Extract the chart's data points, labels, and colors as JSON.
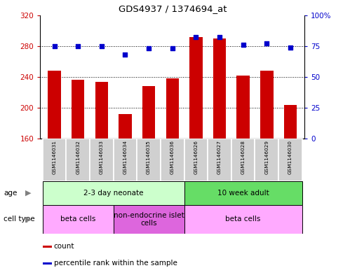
{
  "title": "GDS4937 / 1374694_at",
  "samples": [
    "GSM1146031",
    "GSM1146032",
    "GSM1146033",
    "GSM1146034",
    "GSM1146035",
    "GSM1146036",
    "GSM1146026",
    "GSM1146027",
    "GSM1146028",
    "GSM1146029",
    "GSM1146030"
  ],
  "counts": [
    248,
    236,
    234,
    192,
    228,
    238,
    292,
    290,
    242,
    248,
    204
  ],
  "percentiles": [
    75,
    75,
    75,
    68,
    73,
    73,
    82,
    82,
    76,
    77,
    74
  ],
  "ymin": 160,
  "ymax": 320,
  "yticks": [
    160,
    200,
    240,
    280,
    320
  ],
  "y2min": 0,
  "y2max": 100,
  "y2ticks": [
    0,
    25,
    50,
    75,
    100
  ],
  "bar_color": "#cc0000",
  "dot_color": "#0000cc",
  "age_groups": [
    {
      "label": "2-3 day neonate",
      "start": 0,
      "end": 6,
      "color": "#ccffcc"
    },
    {
      "label": "10 week adult",
      "start": 6,
      "end": 11,
      "color": "#66dd66"
    }
  ],
  "cell_type_groups": [
    {
      "label": "beta cells",
      "start": 0,
      "end": 3,
      "color": "#ffaaff"
    },
    {
      "label": "non-endocrine islet\ncells",
      "start": 3,
      "end": 6,
      "color": "#dd66dd"
    },
    {
      "label": "beta cells",
      "start": 6,
      "end": 11,
      "color": "#ffaaff"
    }
  ],
  "legend_items": [
    {
      "color": "#cc0000",
      "label": "count"
    },
    {
      "color": "#0000cc",
      "label": "percentile rank within the sample"
    }
  ],
  "left_axis_color": "#cc0000",
  "right_axis_color": "#0000cc",
  "sample_box_color": "#d0d0d0"
}
